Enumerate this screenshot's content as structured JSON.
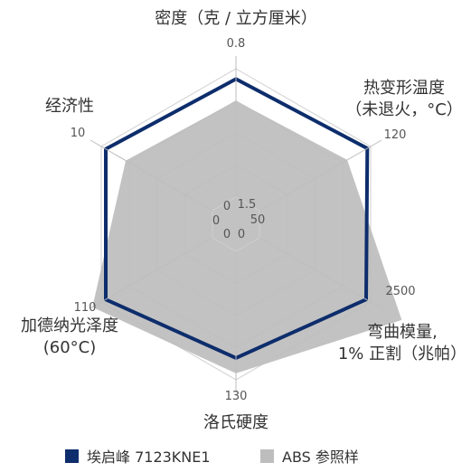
{
  "chart_data": {
    "type": "radar",
    "axes": [
      {
        "title_lines": [
          "密度（克 / 立方厘米）"
        ],
        "min": "0",
        "max": "0.8"
      },
      {
        "title_lines": [
          "热变形温度",
          "（未退火，°C）"
        ],
        "min": "0",
        "max": "120"
      },
      {
        "title_lines": [
          "弯曲模量,",
          "1% 正割（兆帕）"
        ],
        "min": "0",
        "max": "2500"
      },
      {
        "title_lines": [
          "洛氏硬度"
        ],
        "min": "0",
        "max": "130"
      },
      {
        "title_lines": [
          "加德纳光泽度",
          "(60°C)"
        ],
        "min": "0",
        "max": "110"
      },
      {
        "title_lines": [
          "经济性"
        ],
        "min": "0",
        "max": "10"
      }
    ],
    "center_labels": [
      "1.5",
      "50"
    ],
    "series": [
      {
        "name": "埃启峰 7123KNE1",
        "color": "#0d2d6c",
        "values_fraction": [
          0.92,
          0.97,
          0.96,
          0.83,
          0.96,
          0.96
        ]
      },
      {
        "name": "ABS 参照样",
        "color": "#bdbdbd",
        "values_fraction": [
          0.75,
          0.79,
          1.28,
          0.95,
          1.08,
          0.78
        ]
      }
    ],
    "legend_position": "bottom"
  }
}
